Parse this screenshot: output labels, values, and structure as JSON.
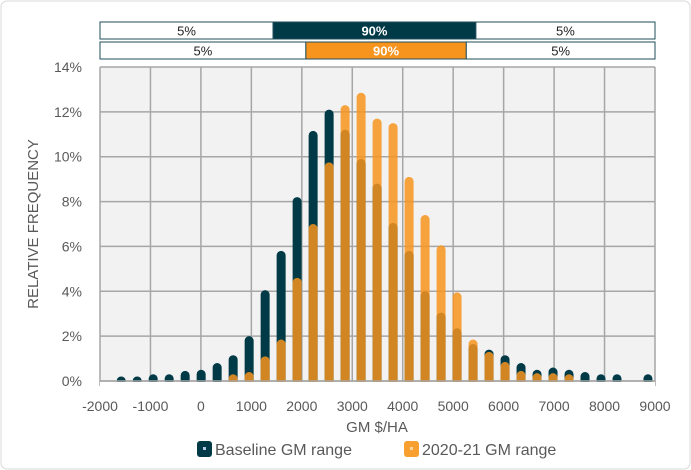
{
  "chart_data": {
    "type": "bar",
    "xlabel": "GM $/HA",
    "ylabel": "RELATIVE FREQUENCY",
    "xlim": [
      -2000,
      9000
    ],
    "ylim": [
      0,
      14
    ],
    "x_ticks": [
      "-2000",
      "-1000",
      "0",
      "1000",
      "2000",
      "3000",
      "4000",
      "5000",
      "6000",
      "7000",
      "8000",
      "9000"
    ],
    "y_ticks": [
      "0%",
      "2%",
      "4%",
      "6%",
      "8%",
      "10%",
      "12%",
      "14%"
    ],
    "grid": true,
    "legend_position": "bottom",
    "colors": {
      "baseline": "#003a47",
      "recent": "#f7941d",
      "plot_bg": "#f2f2f2",
      "grid": "#a6a6a6"
    },
    "series": [
      {
        "name": "Baseline GM range",
        "x": [
          -1580,
          -1263,
          -946,
          -629,
          -312,
          5,
          322,
          639,
          956,
          1273,
          1590,
          1907,
          2224,
          2541,
          2858,
          3175,
          3492,
          3809,
          4126,
          4443,
          4760,
          5077,
          5394,
          5711,
          6028,
          6345,
          6662,
          6979,
          7296,
          7613,
          7930,
          8247,
          8860
        ],
        "values": [
          0.2,
          0.2,
          0.3,
          0.3,
          0.45,
          0.5,
          0.8,
          1.15,
          2.0,
          4.05,
          5.8,
          8.2,
          11.15,
          12.1,
          11.2,
          9.9,
          8.8,
          7.05,
          5.8,
          4.0,
          3.05,
          2.35,
          1.65,
          1.4,
          1.15,
          0.8,
          0.5,
          0.6,
          0.5,
          0.4,
          0.3,
          0.3,
          0.3
        ]
      },
      {
        "name": "2020-21 GM range",
        "x": [
          639,
          956,
          1273,
          1590,
          1907,
          2224,
          2541,
          2858,
          3175,
          3492,
          3809,
          4126,
          4443,
          4760,
          5077,
          5394,
          5711,
          6028,
          6345,
          6662,
          6979,
          7296
        ],
        "values": [
          0.3,
          0.4,
          1.1,
          1.85,
          4.6,
          7.0,
          9.75,
          12.3,
          12.85,
          11.7,
          11.5,
          9.1,
          7.4,
          6.05,
          3.95,
          1.85,
          1.3,
          0.85,
          0.45,
          0.35,
          0.35,
          0.3
        ]
      }
    ],
    "range_bands": [
      {
        "series": "Baseline GM range",
        "bounds": [
          1430,
          5450
        ],
        "labels": [
          "5%",
          "90%",
          "5%"
        ]
      },
      {
        "series": "2020-21 GM range",
        "bounds": [
          2080,
          5260
        ],
        "labels": [
          "5%",
          "90%",
          "5%"
        ]
      }
    ]
  }
}
